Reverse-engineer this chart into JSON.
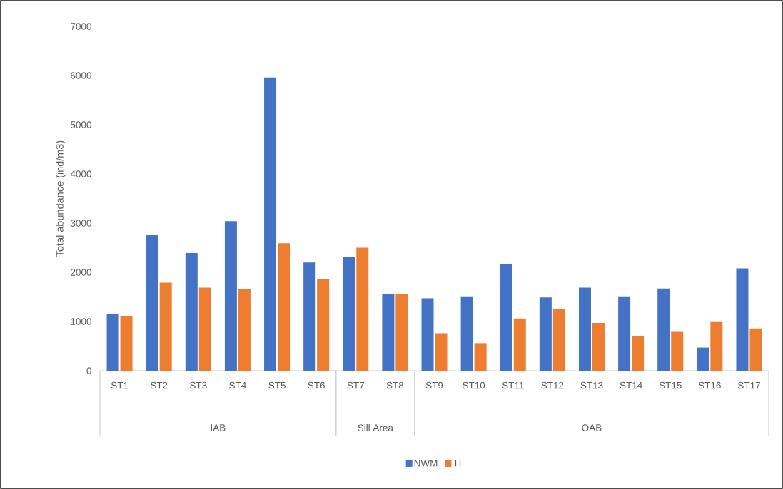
{
  "chart_data": {
    "type": "bar",
    "ylabel": "Total abundance (ind/m3)",
    "categories": [
      "ST1",
      "ST2",
      "ST3",
      "ST4",
      "ST5",
      "ST6",
      "ST7",
      "ST8",
      "ST9",
      "ST10",
      "ST11",
      "ST12",
      "ST13",
      "ST14",
      "ST15",
      "ST16",
      "ST17"
    ],
    "series": [
      {
        "name": "NWM",
        "color": "#4472c4",
        "values": [
          1150,
          2760,
          2390,
          3040,
          5960,
          2200,
          2310,
          1550,
          1470,
          1510,
          2170,
          1490,
          1690,
          1510,
          1670,
          470,
          2080
        ]
      },
      {
        "name": "TI",
        "color": "#ed7d31",
        "values": [
          1100,
          1790,
          1690,
          1660,
          2590,
          1870,
          2500,
          1560,
          760,
          560,
          1060,
          1250,
          970,
          710,
          790,
          990,
          860
        ]
      }
    ],
    "ylim": [
      0,
      7000
    ],
    "yticks": [
      0,
      1000,
      2000,
      3000,
      4000,
      5000,
      6000,
      7000
    ],
    "annotations": [
      "IAB",
      "Sill Area",
      "OAB"
    ],
    "legend": "bottom",
    "grid": false
  }
}
